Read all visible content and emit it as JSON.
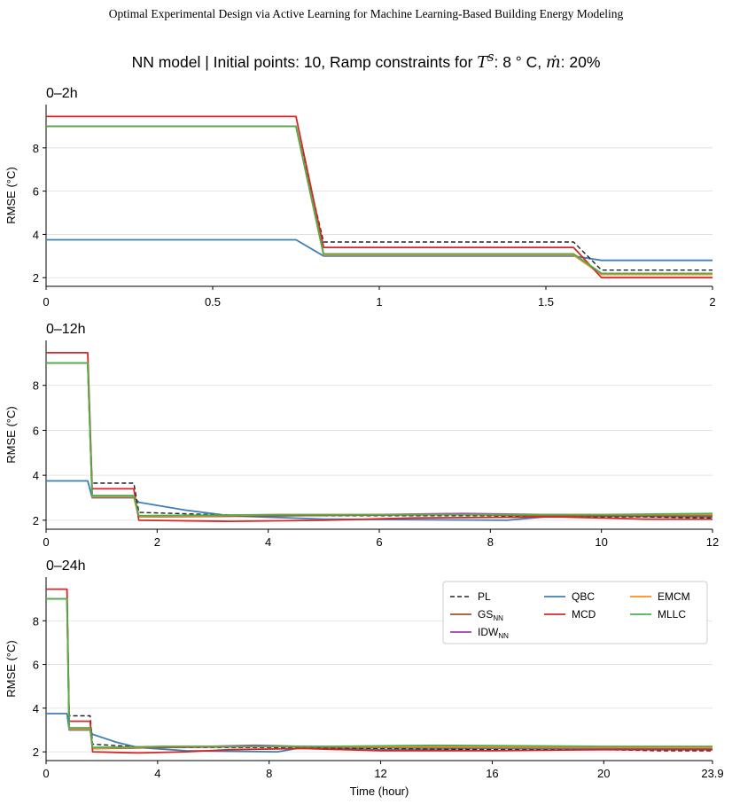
{
  "header": {
    "running_title": "Optimal Experimental Design via Active Learning for Machine Learning-Based Building Energy Modeling"
  },
  "figure": {
    "title_prefix": "NN model  |  Initial points: 10,  Ramp constraints for ",
    "title_var1": "T",
    "title_var1_sup": "s",
    "title_mid": ": 8 ° C, ",
    "title_var2": "ṁ",
    "title_suffix": ": 20%"
  },
  "legend": {
    "entries": [
      {
        "label": "PL",
        "sub": "",
        "color": "#222222",
        "dash": true
      },
      {
        "label": "GS",
        "sub": "NN",
        "color": "#a0522d",
        "dash": false
      },
      {
        "label": "IDW",
        "sub": "NN",
        "color": "#9b3fae",
        "dash": false
      },
      {
        "label": "QBC",
        "sub": "",
        "color": "#3f7fb8",
        "dash": false
      },
      {
        "label": "MCD",
        "sub": "",
        "color": "#d62728",
        "dash": false
      },
      {
        "label": "EMCM",
        "sub": "",
        "color": "#ff8c1a",
        "dash": false
      },
      {
        "label": "MLLC",
        "sub": "",
        "color": "#4caf50",
        "dash": false
      }
    ]
  },
  "chart_data": [
    {
      "type": "line",
      "title": "0–2h",
      "xlabel": "",
      "ylabel": "RMSE (°C)",
      "xlim": [
        0,
        2
      ],
      "ylim": [
        1.6,
        10.0
      ],
      "xticks": [
        0,
        0.5,
        1,
        1.5,
        2
      ],
      "xtick_labels": [
        "0",
        "0.5",
        "1",
        "1.5",
        "2"
      ],
      "yticks": [
        2,
        4,
        6,
        8
      ],
      "grid": "horizontal",
      "series": [
        {
          "name": "PL",
          "x": [
            0,
            0.75,
            0.833,
            1.583,
            1.667,
            2
          ],
          "y": [
            9.0,
            9.0,
            3.65,
            3.65,
            2.35,
            2.35
          ]
        },
        {
          "name": "GS",
          "x": [
            0,
            0.75,
            0.833,
            1.583,
            1.667,
            2
          ],
          "y": [
            9.0,
            9.0,
            3.05,
            3.05,
            2.15,
            2.15
          ]
        },
        {
          "name": "IDW",
          "x": [
            0,
            0.75,
            0.833,
            1.583,
            1.667,
            2
          ],
          "y": [
            9.0,
            9.0,
            3.05,
            3.05,
            2.15,
            2.15
          ]
        },
        {
          "name": "QBC",
          "x": [
            0,
            0.75,
            0.833,
            1.583,
            1.667,
            2
          ],
          "y": [
            3.75,
            3.75,
            3.0,
            3.0,
            2.8,
            2.8
          ]
        },
        {
          "name": "MCD",
          "x": [
            0,
            0.75,
            0.833,
            1.583,
            1.667,
            2
          ],
          "y": [
            9.45,
            9.45,
            3.4,
            3.4,
            2.0,
            2.0
          ]
        },
        {
          "name": "EMCM",
          "x": [
            0,
            0.75,
            0.833,
            1.583,
            1.667,
            2
          ],
          "y": [
            9.0,
            9.0,
            3.05,
            3.05,
            2.15,
            2.15
          ]
        },
        {
          "name": "MLLC",
          "x": [
            0,
            0.75,
            0.833,
            1.583,
            1.667,
            2
          ],
          "y": [
            9.0,
            9.0,
            3.1,
            3.1,
            2.2,
            2.2
          ]
        }
      ]
    },
    {
      "type": "line",
      "title": "0–12h",
      "xlabel": "",
      "ylabel": "RMSE (°C)",
      "xlim": [
        0,
        12
      ],
      "ylim": [
        1.6,
        10.0
      ],
      "xticks": [
        0,
        2,
        4,
        6,
        8,
        10,
        12
      ],
      "xtick_labels": [
        "0",
        "2",
        "4",
        "6",
        "8",
        "10",
        "12"
      ],
      "yticks": [
        2,
        4,
        6,
        8
      ],
      "grid": "horizontal",
      "series": [
        {
          "name": "PL",
          "x": [
            0,
            0.75,
            0.83,
            1.58,
            1.67,
            3.0,
            4.2,
            6.0,
            8.0,
            9.0,
            10.8,
            12
          ],
          "y": [
            9.0,
            9.0,
            3.65,
            3.65,
            2.35,
            2.25,
            2.2,
            2.2,
            2.2,
            2.15,
            2.15,
            2.1
          ]
        },
        {
          "name": "GS",
          "x": [
            0,
            0.75,
            0.83,
            1.58,
            1.67,
            4.2,
            7.5,
            9.0,
            12
          ],
          "y": [
            9.0,
            9.0,
            3.05,
            3.05,
            2.15,
            2.2,
            2.25,
            2.2,
            2.2
          ]
        },
        {
          "name": "IDW",
          "x": [
            0,
            0.75,
            0.83,
            1.58,
            1.67,
            4.2,
            7.5,
            9.1,
            12
          ],
          "y": [
            9.0,
            9.0,
            3.05,
            3.05,
            2.15,
            2.2,
            2.3,
            2.25,
            2.2
          ]
        },
        {
          "name": "QBC",
          "x": [
            0,
            0.75,
            0.83,
            1.58,
            1.67,
            2.5,
            3.3,
            5.0,
            8.3,
            9.2,
            12
          ],
          "y": [
            3.75,
            3.75,
            3.0,
            3.0,
            2.8,
            2.45,
            2.2,
            2.05,
            2.0,
            2.2,
            2.15
          ]
        },
        {
          "name": "MCD",
          "x": [
            0,
            0.75,
            0.83,
            1.58,
            1.67,
            3.3,
            5.0,
            6.6,
            9.2,
            10.8,
            12
          ],
          "y": [
            9.45,
            9.45,
            3.4,
            3.4,
            2.0,
            1.95,
            2.0,
            2.1,
            2.15,
            2.05,
            2.05
          ]
        },
        {
          "name": "EMCM",
          "x": [
            0,
            0.75,
            0.83,
            1.58,
            1.67,
            4.2,
            12
          ],
          "y": [
            9.0,
            9.0,
            3.05,
            3.05,
            2.15,
            2.25,
            2.25
          ]
        },
        {
          "name": "MLLC",
          "x": [
            0,
            0.75,
            0.83,
            1.58,
            1.67,
            4.2,
            10.0,
            12
          ],
          "y": [
            9.0,
            9.0,
            3.1,
            3.1,
            2.2,
            2.25,
            2.25,
            2.3
          ]
        }
      ]
    },
    {
      "type": "line",
      "title": "0–24h",
      "xlabel": "Time (hour)",
      "ylabel": "RMSE (°C)",
      "xlim": [
        0,
        23.9
      ],
      "ylim": [
        1.6,
        10.0
      ],
      "xticks": [
        0,
        4,
        8,
        12,
        16,
        20,
        23.9
      ],
      "xtick_labels": [
        "0",
        "4",
        "8",
        "12",
        "16",
        "20",
        "23.9"
      ],
      "yticks": [
        2,
        4,
        6,
        8
      ],
      "grid": "horizontal",
      "series": [
        {
          "name": "PL",
          "x": [
            0,
            0.75,
            0.83,
            1.58,
            1.67,
            3.0,
            4.2,
            8.0,
            12.0,
            16.0,
            20.0,
            22.0,
            23.9
          ],
          "y": [
            9.0,
            9.0,
            3.65,
            3.65,
            2.35,
            2.25,
            2.2,
            2.2,
            2.15,
            2.1,
            2.1,
            2.05,
            2.05
          ]
        },
        {
          "name": "GS",
          "x": [
            0,
            0.75,
            0.83,
            1.58,
            1.67,
            4.2,
            8.0,
            12.0,
            23.9
          ],
          "y": [
            9.0,
            9.0,
            3.05,
            3.05,
            2.15,
            2.2,
            2.25,
            2.2,
            2.2
          ]
        },
        {
          "name": "IDW",
          "x": [
            0,
            0.75,
            0.83,
            1.58,
            1.67,
            4.2,
            7.5,
            9.2,
            23.9
          ],
          "y": [
            9.0,
            9.0,
            3.05,
            3.05,
            2.15,
            2.2,
            2.3,
            2.25,
            2.2
          ]
        },
        {
          "name": "QBC",
          "x": [
            0,
            0.75,
            0.83,
            1.58,
            1.67,
            2.5,
            3.3,
            5.0,
            8.3,
            9.2,
            12.0,
            16.0,
            23.9
          ],
          "y": [
            3.75,
            3.75,
            3.0,
            3.0,
            2.8,
            2.45,
            2.2,
            2.05,
            2.0,
            2.2,
            2.1,
            2.15,
            2.15
          ]
        },
        {
          "name": "MCD",
          "x": [
            0,
            0.75,
            0.83,
            1.58,
            1.67,
            3.3,
            5.0,
            6.6,
            9.2,
            12.0,
            16.0,
            20.0,
            23.9
          ],
          "y": [
            9.45,
            9.45,
            3.4,
            3.4,
            2.0,
            1.95,
            2.0,
            2.1,
            2.15,
            2.05,
            2.05,
            2.1,
            2.1
          ]
        },
        {
          "name": "EMCM",
          "x": [
            0,
            0.75,
            0.83,
            1.58,
            1.67,
            4.2,
            23.9
          ],
          "y": [
            9.0,
            9.0,
            3.05,
            3.05,
            2.15,
            2.25,
            2.2
          ]
        },
        {
          "name": "MLLC",
          "x": [
            0,
            0.75,
            0.83,
            1.58,
            1.67,
            4.2,
            10.0,
            14.0,
            20.0,
            23.9
          ],
          "y": [
            9.0,
            9.0,
            3.1,
            3.1,
            2.2,
            2.25,
            2.25,
            2.3,
            2.25,
            2.25
          ]
        }
      ]
    }
  ]
}
